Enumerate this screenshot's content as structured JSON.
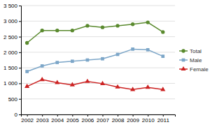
{
  "chart_data": {
    "type": "line",
    "x": [
      2002,
      2003,
      2004,
      2005,
      2006,
      2007,
      2008,
      2009,
      2010,
      2011
    ],
    "series": [
      {
        "name": "Total",
        "color": "#5a8a2e",
        "marker": "circle",
        "values": [
          2300,
          2700,
          2700,
          2700,
          2850,
          2800,
          2850,
          2900,
          2960,
          2650
        ]
      },
      {
        "name": "Male",
        "color": "#7ca6c8",
        "marker": "square",
        "values": [
          1380,
          1560,
          1670,
          1710,
          1750,
          1790,
          1930,
          2100,
          2080,
          1870
        ]
      },
      {
        "name": "Female",
        "color": "#cc2222",
        "marker": "triangle",
        "values": [
          900,
          1120,
          1020,
          950,
          1060,
          990,
          880,
          800,
          870,
          800
        ]
      }
    ],
    "xlim": [
      2001.6,
      2011.8
    ],
    "xticks": [
      2002,
      2003,
      2004,
      2005,
      2006,
      2007,
      2008,
      2009,
      2010,
      2011
    ],
    "ylim": [
      0,
      3500
    ],
    "yticks": [
      0,
      500,
      {
        "value": 1000,
        "label": "1 000"
      },
      {
        "value": 1500,
        "label": "1 500"
      },
      {
        "value": 2000,
        "label": "2 000"
      },
      {
        "value": 2500,
        "label": "2 500"
      },
      {
        "value": 3000,
        "label": "3 000"
      },
      {
        "value": 3500,
        "label": "3 500"
      }
    ],
    "grid": true,
    "legend": "right"
  }
}
